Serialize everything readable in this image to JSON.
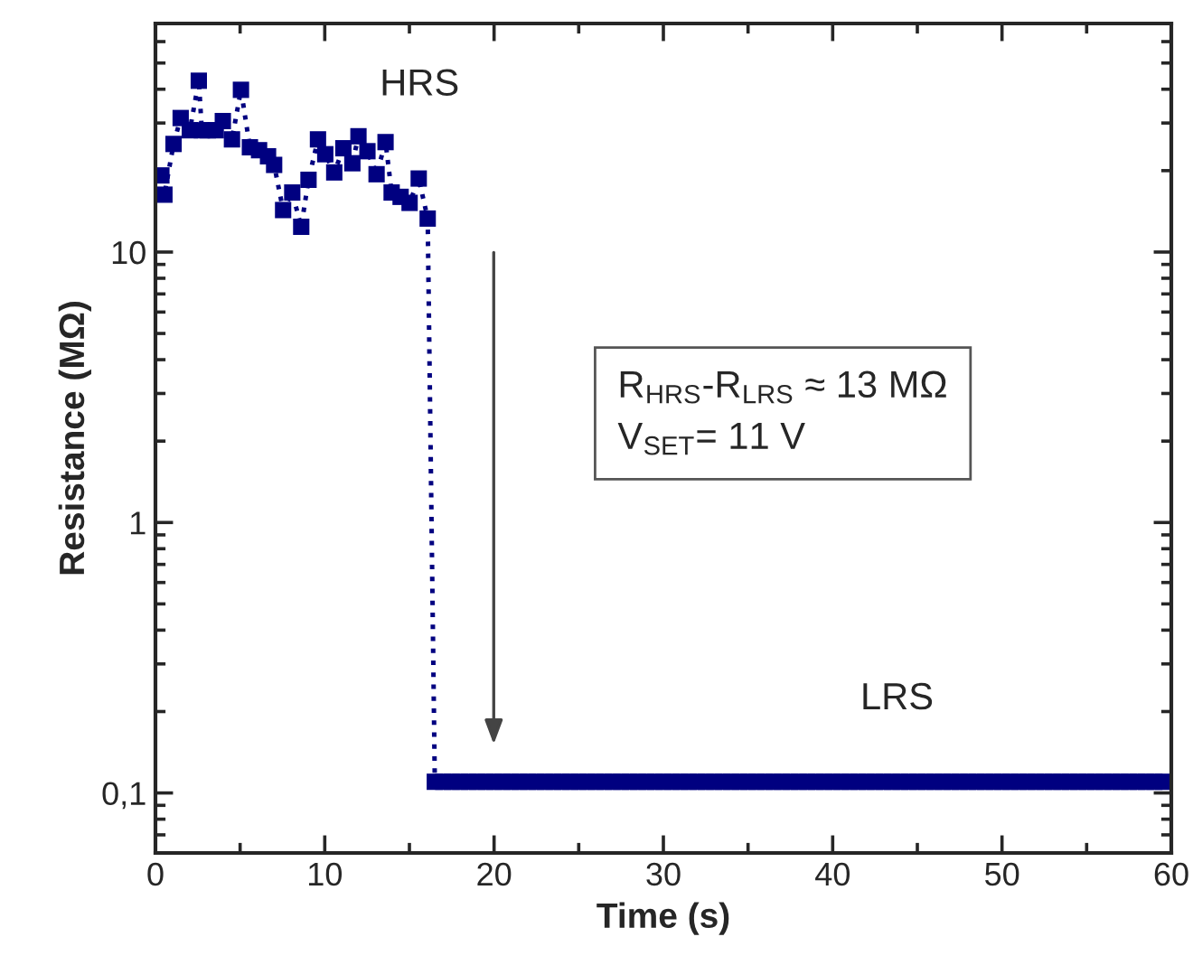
{
  "chart_data": {
    "type": "line",
    "xlabel": "Time (s)",
    "ylabel": "Resistance (MΩ)",
    "log": "y",
    "xlim": [
      0,
      60
    ],
    "ylim": [
      0.06,
      70
    ],
    "xticks": [
      0,
      10,
      20,
      30,
      40,
      50,
      60
    ],
    "yticks": [
      {
        "value": 0.1,
        "label": "0,1"
      },
      1,
      10
    ],
    "grid": false,
    "legend": false,
    "marker": "square",
    "line_style": "dotted",
    "series": [
      {
        "color": "#000080",
        "x": [
          0.35,
          0.53,
          1.07,
          1.49,
          2.03,
          2.56,
          2.74,
          3.1,
          3.56,
          3.98,
          4.52,
          5.05,
          5.58,
          6.12,
          6.65,
          7.01,
          7.54,
          8.08,
          8.61,
          9.04,
          9.6,
          10.03,
          10.56,
          11.1,
          11.63,
          11.99,
          12.52,
          13.06,
          13.59,
          13.95,
          14.48,
          15.01,
          15.55,
          16.08,
          16.5,
          17,
          17.5,
          18,
          18.5,
          19,
          19.5,
          20,
          20.5,
          21,
          21.5,
          22,
          22.5,
          23,
          23.5,
          24,
          24.5,
          25,
          25.5,
          26,
          26.5,
          27,
          27.5,
          28,
          28.5,
          29,
          29.5,
          30,
          30.5,
          31,
          31.5,
          32,
          32.5,
          33,
          33.5,
          34,
          34.5,
          35,
          35.5,
          36,
          36.5,
          37,
          37.5,
          38,
          38.5,
          39,
          39.5,
          40,
          40.5,
          41,
          41.5,
          42,
          42.5,
          43,
          43.5,
          44,
          44.5,
          45,
          45.5,
          46,
          46.5,
          47,
          47.5,
          48,
          48.5,
          49,
          49.5,
          50,
          50.5,
          51,
          51.5,
          52,
          52.5,
          53,
          53.5,
          54,
          54.5,
          55,
          55.5,
          56,
          56.5,
          57,
          57.5,
          58,
          58.5,
          59,
          59.5
        ],
        "values": [
          19.2,
          16.3,
          25.1,
          31.3,
          28.2,
          43.0,
          28.2,
          28.2,
          28.2,
          30.5,
          26.1,
          39.8,
          24.4,
          23.8,
          22.6,
          21.0,
          14.3,
          16.6,
          12.4,
          18.5,
          26.1,
          23.0,
          19.7,
          24.2,
          21.3,
          26.8,
          23.6,
          19.4,
          25.5,
          16.6,
          16.0,
          15.2,
          18.7,
          13.3,
          0.11,
          0.11,
          0.11,
          0.11,
          0.11,
          0.11,
          0.11,
          0.11,
          0.11,
          0.11,
          0.11,
          0.11,
          0.11,
          0.11,
          0.11,
          0.11,
          0.11,
          0.11,
          0.11,
          0.11,
          0.11,
          0.11,
          0.11,
          0.11,
          0.11,
          0.11,
          0.11,
          0.11,
          0.11,
          0.11,
          0.11,
          0.11,
          0.11,
          0.11,
          0.11,
          0.11,
          0.11,
          0.11,
          0.11,
          0.11,
          0.11,
          0.11,
          0.11,
          0.11,
          0.11,
          0.11,
          0.11,
          0.11,
          0.11,
          0.11,
          0.11,
          0.11,
          0.11,
          0.11,
          0.11,
          0.11,
          0.11,
          0.11,
          0.11,
          0.11,
          0.11,
          0.11,
          0.11,
          0.11,
          0.11,
          0.11,
          0.11,
          0.11,
          0.11,
          0.11,
          0.11,
          0.11,
          0.11,
          0.11,
          0.11,
          0.11,
          0.11,
          0.11,
          0.11,
          0.11,
          0.11,
          0.11,
          0.11,
          0.11,
          0.11,
          0.11,
          0.11
        ]
      }
    ],
    "annotations": [
      "HRS",
      "LRS",
      "R$_{HRS}$-R$_{LRS}$ ≈ 13 MΩ",
      "V$_{SET}$= 11 V"
    ]
  }
}
